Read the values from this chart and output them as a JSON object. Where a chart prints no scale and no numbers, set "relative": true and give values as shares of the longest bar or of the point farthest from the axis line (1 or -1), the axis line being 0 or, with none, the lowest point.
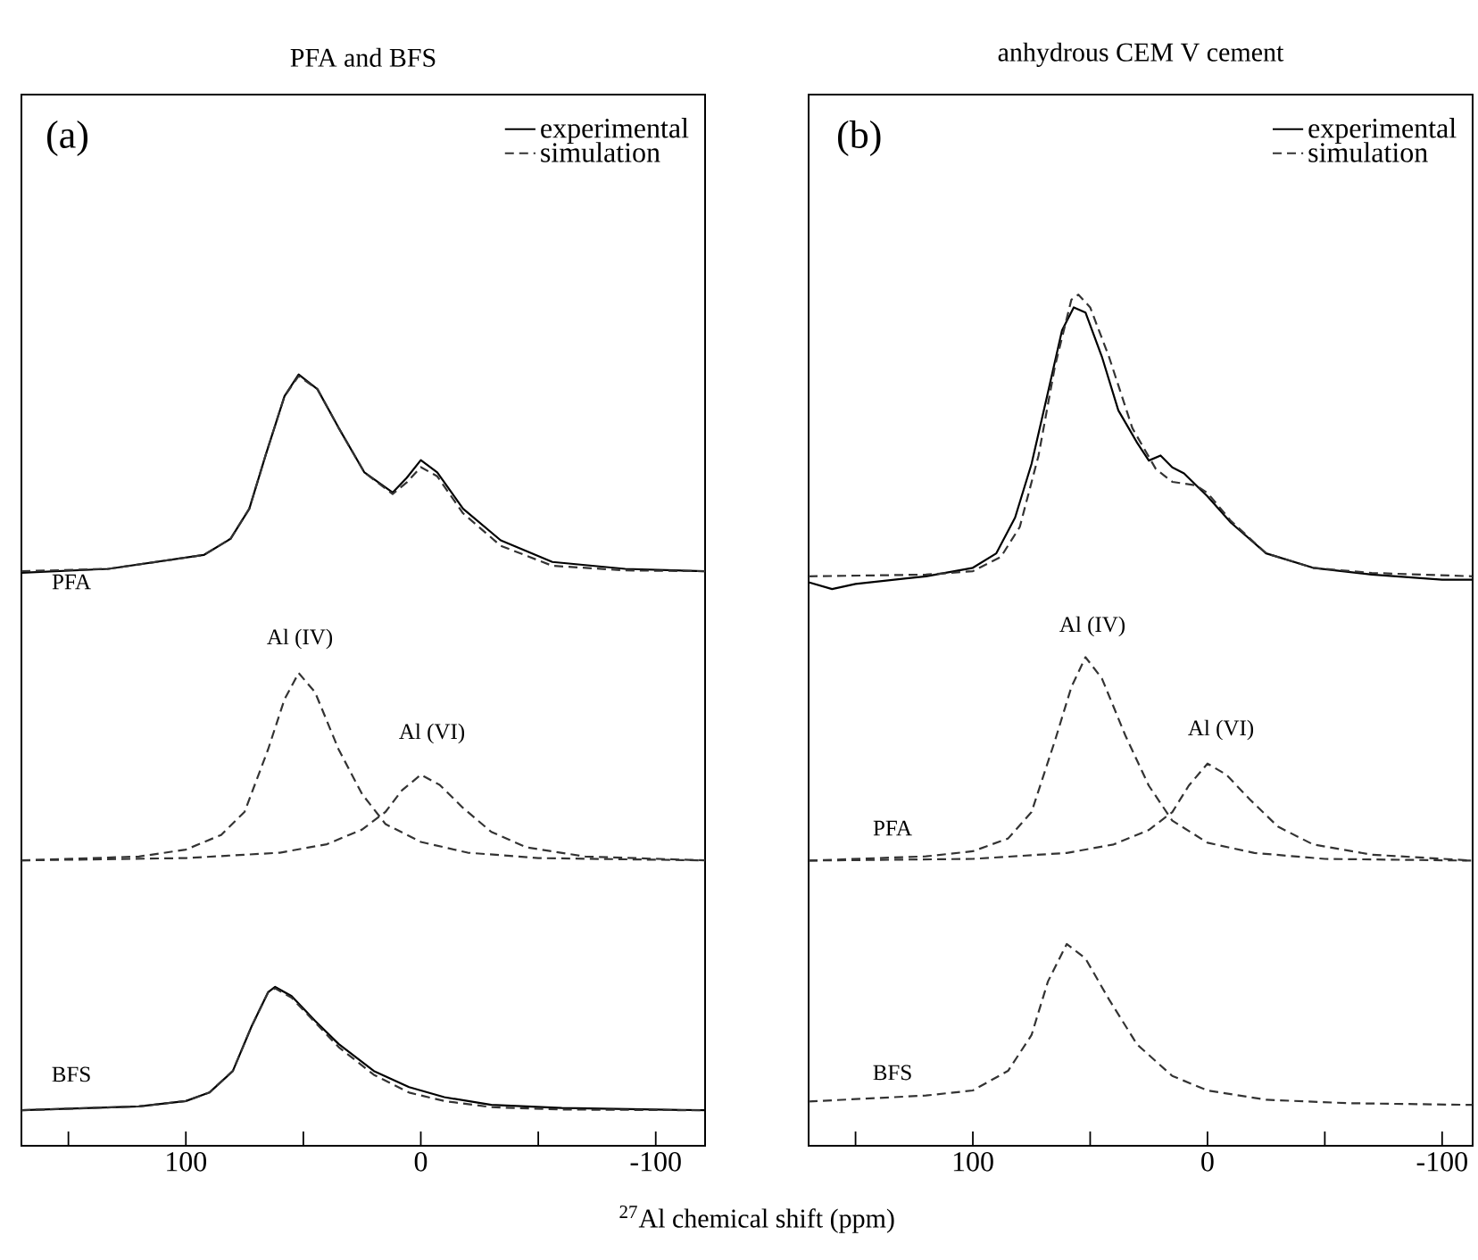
{
  "chart_data": [
    {
      "type": "line",
      "title": "PFA and BFS",
      "xlabel": "$^{27}$Al chemical shift (ppm)",
      "relative": true,
      "xlim": [
        170,
        -121
      ],
      "xticks": [
        {
          "value": 150,
          "label": null
        },
        100,
        {
          "value": 50,
          "label": null
        },
        0,
        {
          "value": -50,
          "label": null
        },
        -100
      ],
      "legend": "top right",
      "marker": "none",
      "grid": false,
      "annotations": [
        "(a)",
        "PFA",
        "BFS",
        "Al (IV)",
        "Al (VI)"
      ],
      "series": [
        {
          "name": "experimental",
          "color": "#000000",
          "line_style": "solid",
          "x": [
            170,
            133,
            92.4,
            81,
            73,
            66,
            58,
            52,
            44,
            35,
            24,
            12,
            6,
            0,
            -7,
            -18,
            -34,
            -56,
            -87,
            -121
          ],
          "values": [
            0.743,
            0.748,
            0.766,
            0.787,
            0.826,
            0.896,
            0.972,
            1.0,
            0.981,
            0.931,
            0.873,
            0.847,
            0.866,
            0.889,
            0.873,
            0.826,
            0.785,
            0.757,
            0.748,
            0.745
          ]
        },
        {
          "name": "simulation",
          "color": "#333333",
          "line_style": "dashed",
          "x": [
            170,
            133,
            92.4,
            81,
            73,
            66,
            58,
            52,
            44,
            35,
            24,
            12,
            6,
            0,
            -7,
            -18,
            -34,
            -56,
            -87,
            -121
          ],
          "values": [
            0.745,
            0.748,
            0.766,
            0.787,
            0.826,
            0.896,
            0.972,
            0.998,
            0.981,
            0.931,
            0.873,
            0.845,
            0.86,
            0.88,
            0.868,
            0.82,
            0.778,
            0.752,
            0.746,
            0.745
          ]
        },
        {
          "color": "#333333",
          "line_style": "dashed",
          "x": [
            170,
            120,
            100,
            85,
            75,
            65,
            58,
            52,
            45,
            35,
            25,
            15,
            0,
            -20,
            -50,
            -121
          ],
          "values": [
            0.37,
            0.375,
            0.384,
            0.403,
            0.433,
            0.514,
            0.579,
            0.613,
            0.588,
            0.514,
            0.456,
            0.417,
            0.394,
            0.38,
            0.373,
            0.37
          ]
        },
        {
          "color": "#333333",
          "line_style": "dashed",
          "x": [
            170,
            100,
            60,
            40,
            25,
            15,
            8,
            0,
            -8,
            -18,
            -30,
            -45,
            -70,
            -121
          ],
          "values": [
            0.37,
            0.373,
            0.38,
            0.391,
            0.41,
            0.433,
            0.461,
            0.481,
            0.468,
            0.438,
            0.407,
            0.387,
            0.375,
            0.37
          ]
        },
        {
          "color": "#000000",
          "line_style": "solid",
          "x": [
            170,
            120,
            100,
            90,
            80,
            72,
            65,
            62,
            55,
            45,
            35,
            20,
            5,
            -10,
            -30,
            -60,
            -121
          ],
          "values": [
            0.046,
            0.051,
            0.058,
            0.069,
            0.097,
            0.155,
            0.199,
            0.206,
            0.194,
            0.162,
            0.132,
            0.097,
            0.076,
            0.063,
            0.053,
            0.049,
            0.046
          ]
        },
        {
          "color": "#333333",
          "line_style": "dashed",
          "x": [
            170,
            120,
            100,
            90,
            80,
            72,
            65,
            62,
            55,
            45,
            35,
            20,
            5,
            -10,
            -30,
            -60,
            -121
          ],
          "values": [
            0.046,
            0.051,
            0.058,
            0.069,
            0.097,
            0.155,
            0.199,
            0.204,
            0.192,
            0.16,
            0.128,
            0.092,
            0.069,
            0.058,
            0.05,
            0.047,
            0.046
          ]
        }
      ]
    },
    {
      "type": "line",
      "title": "anhydrous CEM V cement",
      "relative": true,
      "xlim": [
        170,
        -113
      ],
      "xticks": [
        {
          "value": 150,
          "label": null
        },
        100,
        {
          "value": 50,
          "label": null
        },
        0,
        {
          "value": -50,
          "label": null
        },
        -100
      ],
      "legend": "top right",
      "marker": "none",
      "grid": false,
      "annotations": [
        "(b)",
        "PFA",
        "BFS",
        "Al (IV)",
        "Al (VI)"
      ],
      "series": [
        {
          "name": "experimental",
          "color": "#000000",
          "line_style": "solid",
          "x": [
            170,
            160,
            150,
            120,
            100,
            90,
            82,
            75,
            68,
            62,
            57,
            52,
            45,
            38,
            30,
            25,
            20,
            15,
            10,
            0,
            -10,
            -25,
            -45,
            -70,
            -100,
            -113
          ],
          "values": [
            0.662,
            0.654,
            0.66,
            0.669,
            0.679,
            0.696,
            0.738,
            0.801,
            0.885,
            0.958,
            0.985,
            0.979,
            0.927,
            0.864,
            0.826,
            0.805,
            0.811,
            0.797,
            0.79,
            0.763,
            0.732,
            0.696,
            0.679,
            0.671,
            0.665,
            0.665
          ]
        },
        {
          "name": "simulation",
          "color": "#333333",
          "line_style": "dashed",
          "x": [
            170,
            120,
            100,
            88,
            80,
            72,
            65,
            58,
            55,
            50,
            42,
            32,
            22,
            15,
            5,
            0,
            -10,
            -25,
            -45,
            -70,
            -113
          ],
          "values": [
            0.669,
            0.671,
            0.675,
            0.692,
            0.727,
            0.811,
            0.916,
            0.994,
            1.0,
            0.985,
            0.927,
            0.843,
            0.795,
            0.78,
            0.776,
            0.767,
            0.734,
            0.696,
            0.679,
            0.673,
            0.669
          ]
        },
        {
          "color": "#333333",
          "line_style": "dashed",
          "x": [
            170,
            120,
            100,
            85,
            75,
            65,
            58,
            52,
            45,
            35,
            25,
            15,
            0,
            -20,
            -50,
            -113
          ],
          "values": [
            0.335,
            0.34,
            0.346,
            0.361,
            0.392,
            0.476,
            0.539,
            0.574,
            0.549,
            0.482,
            0.423,
            0.382,
            0.356,
            0.344,
            0.337,
            0.335
          ]
        },
        {
          "color": "#333333",
          "line_style": "dashed",
          "x": [
            170,
            100,
            60,
            40,
            25,
            15,
            8,
            0,
            -8,
            -18,
            -30,
            -45,
            -70,
            -113
          ],
          "values": [
            0.335,
            0.337,
            0.344,
            0.354,
            0.371,
            0.392,
            0.423,
            0.449,
            0.436,
            0.407,
            0.375,
            0.354,
            0.342,
            0.335
          ]
        },
        {
          "color": "#333333",
          "line_style": "dashed",
          "x": [
            170,
            120,
            100,
            85,
            75,
            68,
            60,
            52,
            42,
            30,
            15,
            0,
            -25,
            -60,
            -113
          ],
          "values": [
            0.052,
            0.059,
            0.065,
            0.088,
            0.13,
            0.193,
            0.237,
            0.22,
            0.172,
            0.119,
            0.082,
            0.065,
            0.054,
            0.05,
            0.048
          ]
        }
      ]
    }
  ]
}
